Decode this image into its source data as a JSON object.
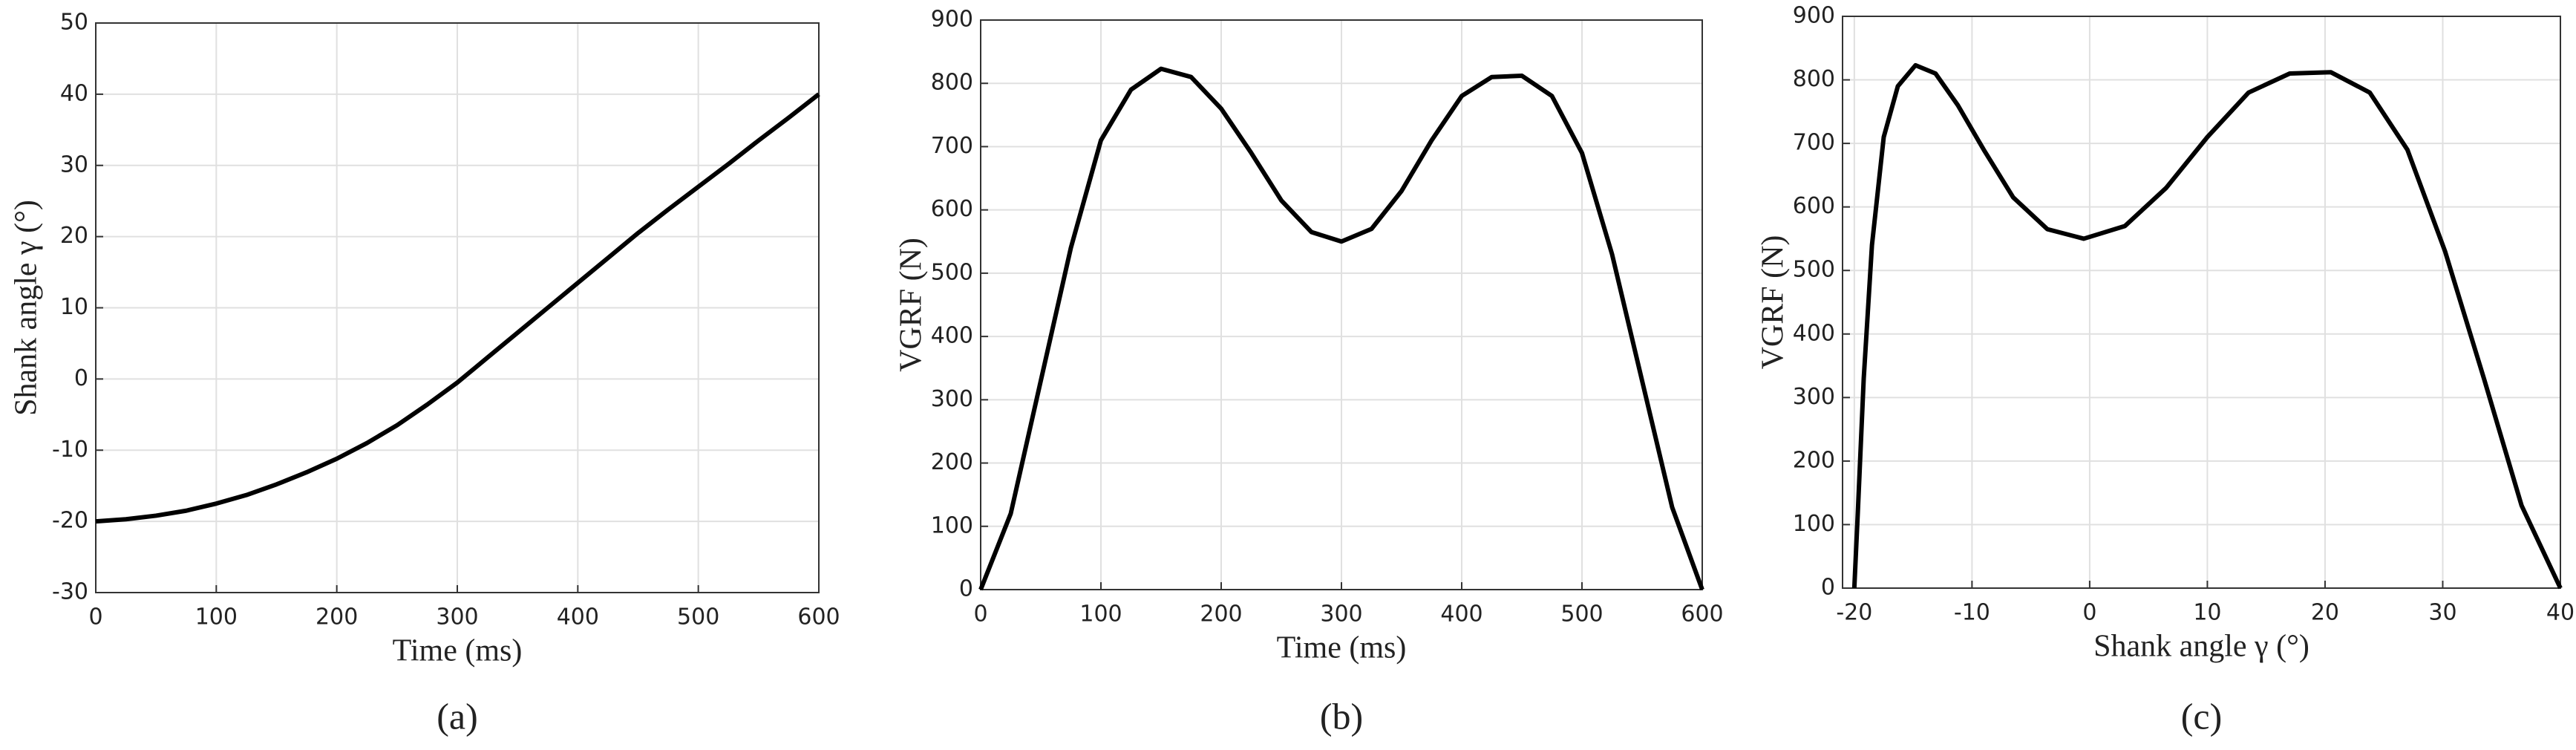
{
  "chart_data": [
    {
      "type": "line",
      "caption": "(a)",
      "xlabel": "Time (ms)",
      "ylabel": "Shank angle γ (°)",
      "x": [
        0,
        25,
        50,
        75,
        100,
        125,
        150,
        175,
        200,
        225,
        250,
        275,
        300,
        325,
        350,
        375,
        400,
        425,
        450,
        475,
        500,
        525,
        550,
        575,
        600
      ],
      "values": [
        -20,
        -19.7,
        -19.2,
        -18.5,
        -17.5,
        -16.3,
        -14.8,
        -13.1,
        -11.2,
        -9,
        -6.5,
        -3.6,
        -0.5,
        3,
        6.5,
        10,
        13.5,
        17,
        20.5,
        23.8,
        27,
        30.2,
        33.5,
        36.7,
        40
      ],
      "color": "#000000",
      "xlim": [
        0,
        600
      ],
      "xticks": [
        0,
        100,
        200,
        300,
        400,
        500,
        600
      ],
      "ylim": [
        -30,
        50
      ],
      "yticks": [
        -30,
        -20,
        -10,
        0,
        10,
        20,
        30,
        40,
        50
      ],
      "grid": true
    },
    {
      "type": "line",
      "caption": "(b)",
      "xlabel": "Time (ms)",
      "ylabel": "VGRF (N)",
      "x": [
        0,
        25,
        50,
        75,
        100,
        125,
        150,
        175,
        200,
        225,
        250,
        275,
        300,
        325,
        350,
        375,
        400,
        425,
        450,
        475,
        500,
        525,
        550,
        575,
        600
      ],
      "values": [
        0,
        120,
        330,
        540,
        710,
        790,
        823,
        810,
        760,
        690,
        615,
        565,
        550,
        570,
        630,
        710,
        780,
        810,
        812,
        780,
        690,
        530,
        330,
        130,
        0
      ],
      "color": "#000000",
      "xlim": [
        0,
        600
      ],
      "xticks": [
        0,
        100,
        200,
        300,
        400,
        500,
        600
      ],
      "ylim": [
        0,
        900
      ],
      "yticks": [
        0,
        100,
        200,
        300,
        400,
        500,
        600,
        700,
        800,
        900
      ],
      "grid": true
    },
    {
      "type": "line",
      "caption": "(c)",
      "xlabel": "Shank angle γ (°)",
      "ylabel": "VGRF (N)",
      "x": [
        -20,
        -19.7,
        -19.2,
        -18.5,
        -17.5,
        -16.3,
        -14.8,
        -13.1,
        -11.2,
        -9,
        -6.5,
        -3.6,
        -0.5,
        3,
        6.5,
        10,
        13.5,
        17,
        20.5,
        23.8,
        27,
        30.2,
        33.5,
        36.7,
        40
      ],
      "values": [
        0,
        120,
        330,
        540,
        710,
        790,
        823,
        810,
        760,
        690,
        615,
        565,
        550,
        570,
        630,
        710,
        780,
        810,
        812,
        780,
        690,
        530,
        330,
        130,
        0
      ],
      "color": "#000000",
      "xlim": [
        -21,
        40
      ],
      "xticks": [
        -20,
        -10,
        0,
        10,
        20,
        30,
        40
      ],
      "ylim": [
        0,
        900
      ],
      "yticks": [
        0,
        100,
        200,
        300,
        400,
        500,
        600,
        700,
        800,
        900
      ],
      "grid": true
    }
  ]
}
